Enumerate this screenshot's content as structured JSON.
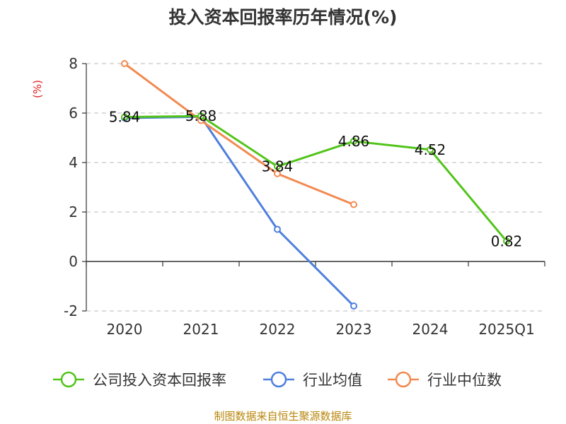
{
  "chart_data": {
    "type": "line",
    "title": "投入资本回报率历年情况(%)",
    "ylabel": "(%)",
    "xlabel": "",
    "categories": [
      "2020",
      "2021",
      "2022",
      "2023",
      "2024",
      "2025Q1"
    ],
    "ylim": [
      -2,
      8
    ],
    "yticks": [
      -2,
      0,
      2,
      4,
      6,
      8
    ],
    "grid": true,
    "legend_position": "bottom",
    "series": [
      {
        "name": "公司投入资本回报率",
        "color": "#52c41a",
        "values": [
          5.84,
          5.88,
          3.84,
          4.86,
          4.52,
          0.82
        ],
        "data_labels": [
          "5.84",
          "5.88",
          "3.84",
          "4.86",
          "4.52",
          "0.82"
        ]
      },
      {
        "name": "行业均值",
        "color": "#4f7fdc",
        "values": [
          5.8,
          5.85,
          1.3,
          -1.8,
          null,
          null
        ]
      },
      {
        "name": "行业中位数",
        "color": "#f28a52",
        "values": [
          8.0,
          5.7,
          3.55,
          2.3,
          null,
          null
        ]
      }
    ]
  },
  "source": "制图数据来自恒生聚源数据库"
}
